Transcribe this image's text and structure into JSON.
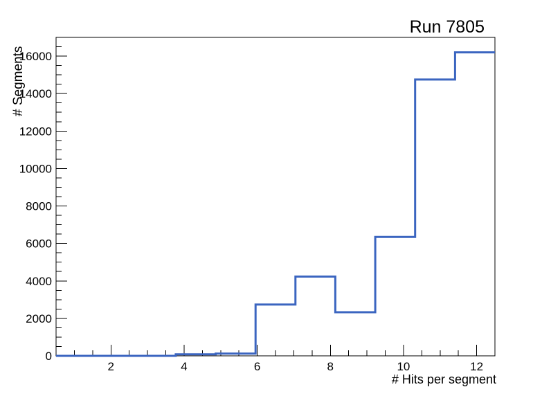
{
  "chart_data": {
    "type": "line",
    "subtype": "step-histogram",
    "title": "Run 7805",
    "xlabel": "# Hits per segment",
    "ylabel": "# Segments",
    "xlim": [
      0.5,
      12.5
    ],
    "ylim": [
      0,
      17000
    ],
    "grid": false,
    "legend": "none",
    "bin_edges": [
      0.5,
      1.591,
      2.682,
      3.773,
      4.864,
      5.955,
      7.045,
      8.136,
      9.227,
      10.318,
      11.409,
      12.5
    ],
    "bin_values": [
      0,
      0,
      0,
      80,
      120,
      2740,
      4230,
      2330,
      6350,
      14750,
      16200
    ],
    "x_major_ticks": [
      2,
      4,
      6,
      8,
      10,
      12
    ],
    "x_minor_tick_step": 0.5,
    "y_major_ticks": [
      0,
      2000,
      4000,
      6000,
      8000,
      10000,
      12000,
      14000,
      16000
    ],
    "y_minor_tick_step": 500,
    "line_width": 3,
    "colors": {
      "line": "#3b65c0",
      "axis": "#000000",
      "background": "#ffffff",
      "text": "#000000"
    }
  }
}
